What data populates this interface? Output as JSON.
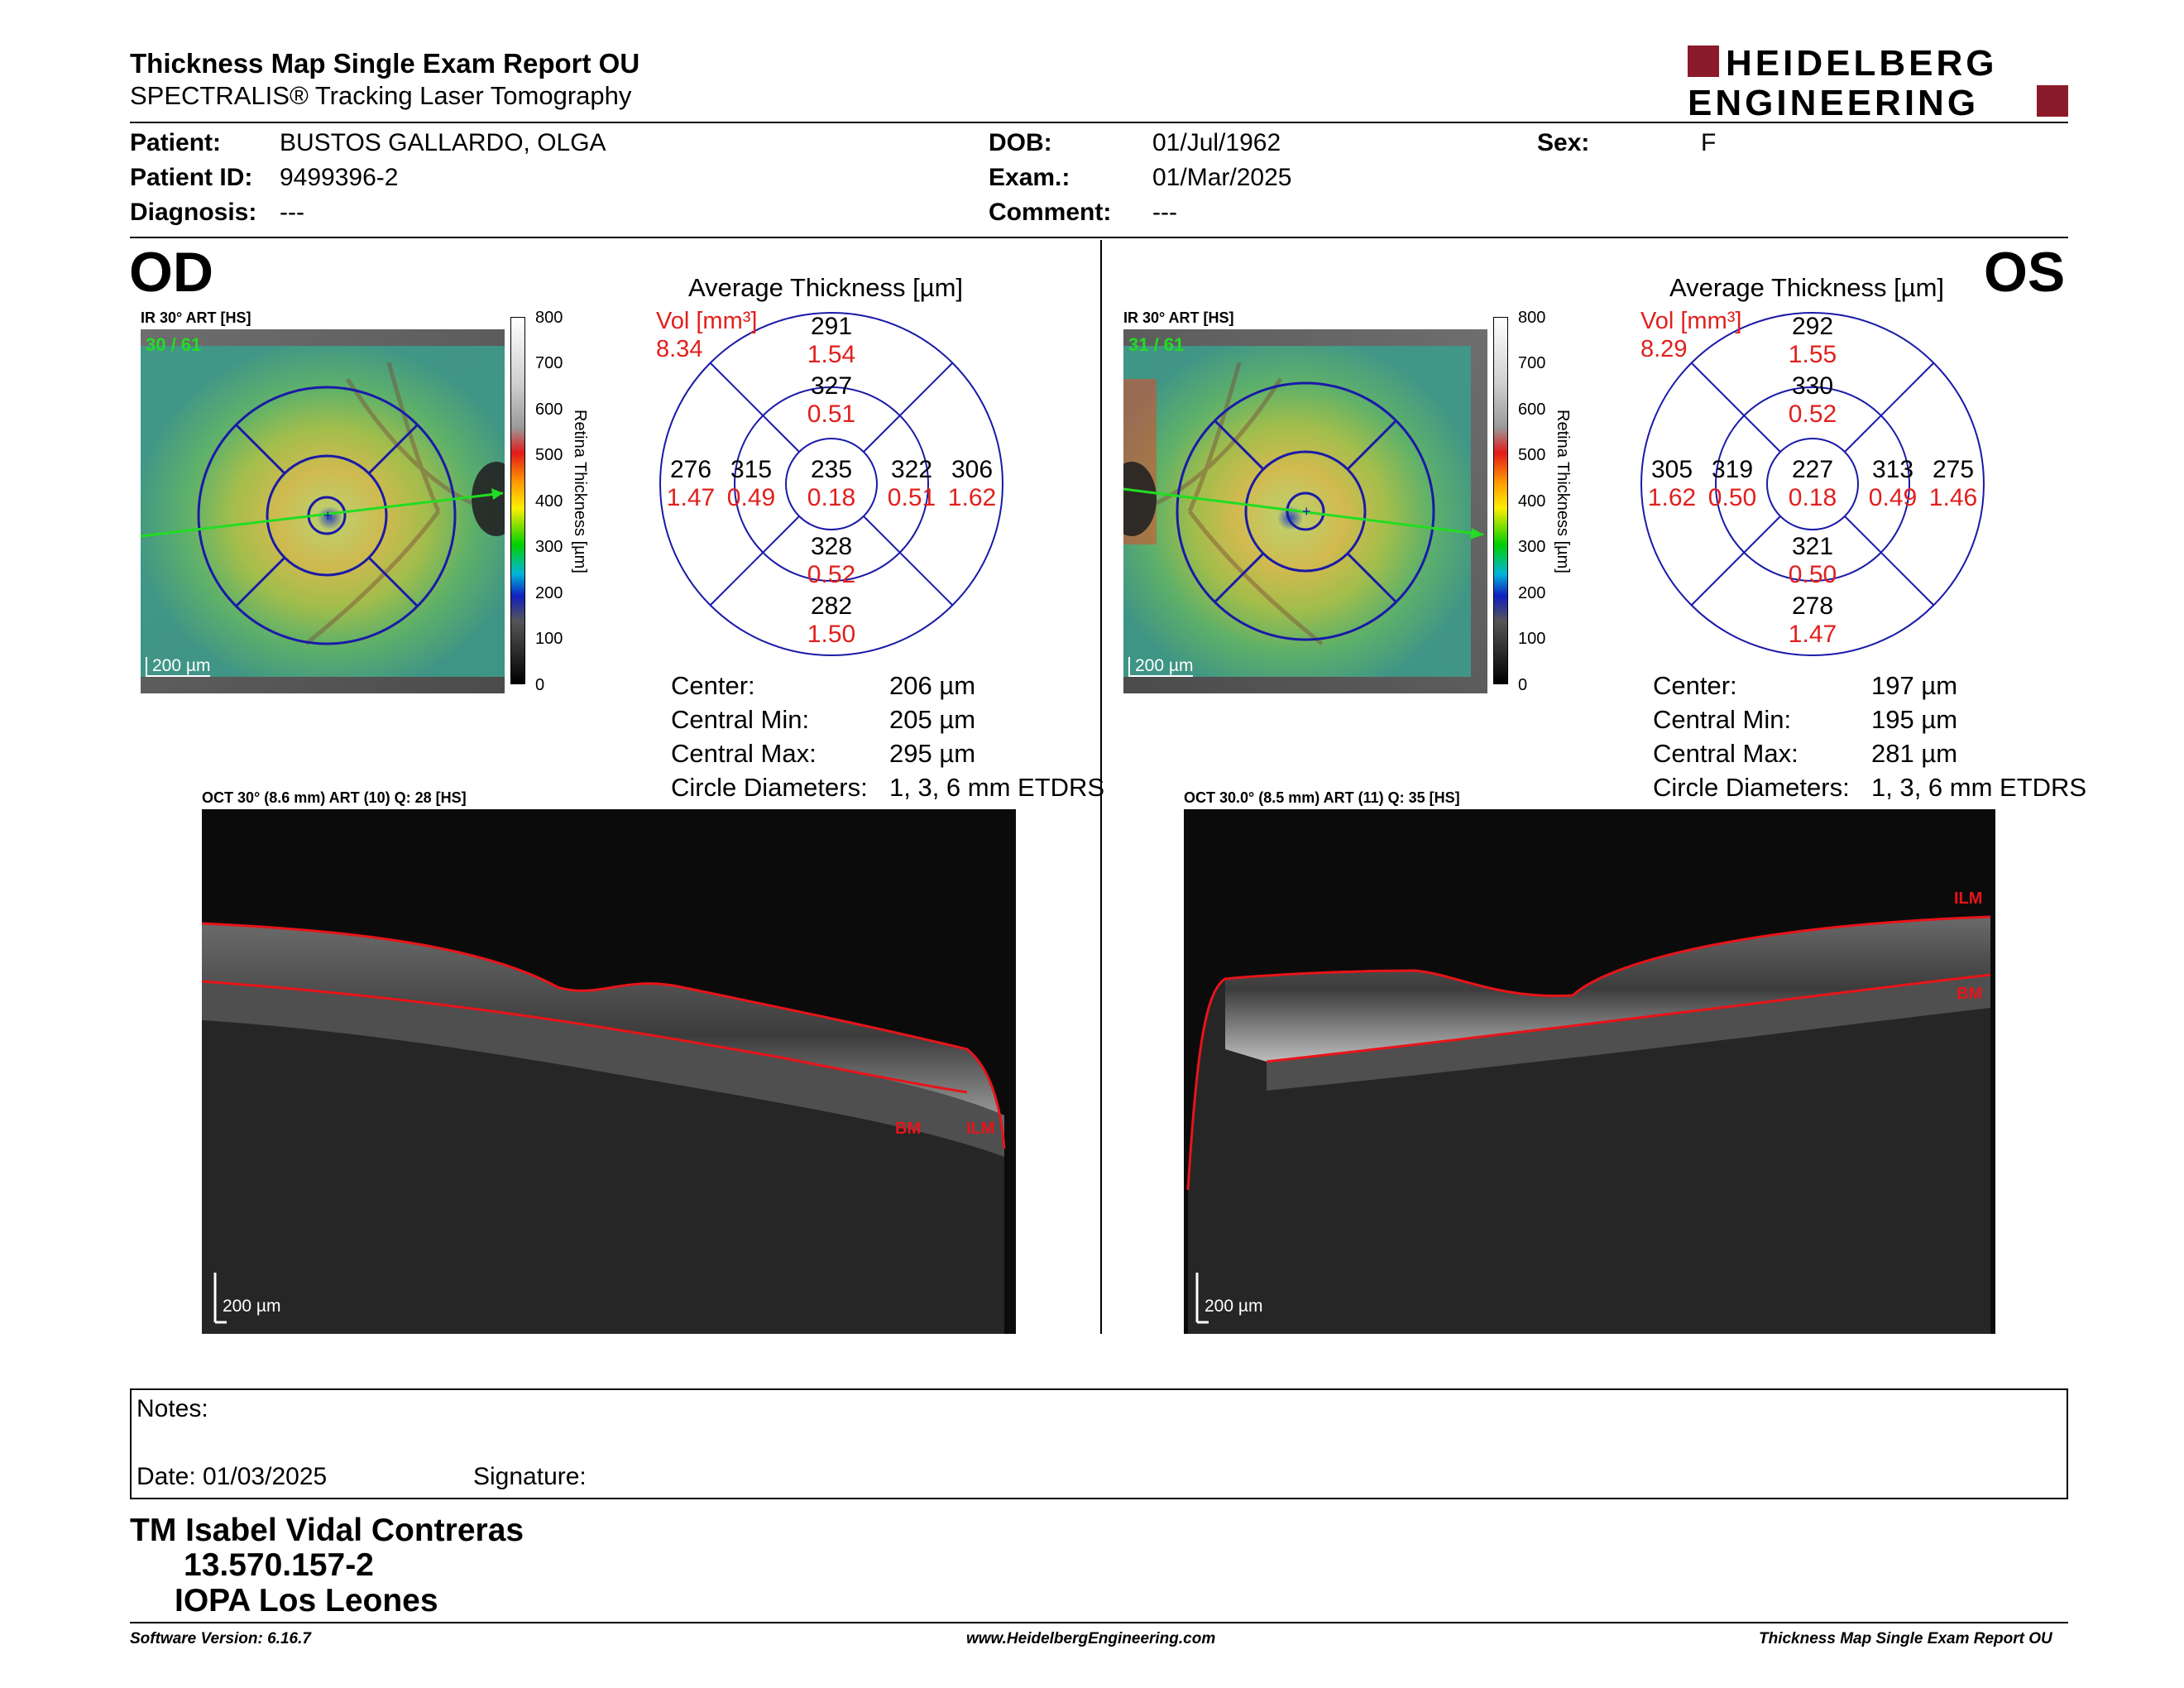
{
  "header": {
    "title": "Thickness Map Single Exam Report OU",
    "subtitle": "SPECTRALIS® Tracking Laser Tomography",
    "logo_line1": "HEIDELBERG",
    "logo_line2": "ENGINEERING",
    "brand_color": "#8b1a2b"
  },
  "patient": {
    "patient_label": "Patient:",
    "patient_value": "BUSTOS GALLARDO, OLGA",
    "id_label": "Patient ID:",
    "id_value": "9499396-2",
    "diag_label": "Diagnosis:",
    "diag_value": "---",
    "dob_label": "DOB:",
    "dob_value": "01/Jul/1962",
    "exam_label": "Exam.:",
    "exam_value": "01/Mar/2025",
    "comment_label": "Comment:",
    "comment_value": "---",
    "sex_label": "Sex:",
    "sex_value": "F"
  },
  "od": {
    "eye": "OD",
    "ir_label": "IR 30° ART [HS]",
    "frame_count": "30 / 61",
    "scale": "200 µm",
    "colorbar_title": "Retina Thickness [µm]",
    "colorbar_ticks": [
      "800",
      "700",
      "600",
      "500",
      "400",
      "300",
      "200",
      "100",
      "0"
    ],
    "avg_title": "Average Thickness [µm]",
    "vol_label": "Vol [mm³]",
    "vol_value": "8.34",
    "etdrs": {
      "center_t": "235",
      "center_v": "0.18",
      "inner_sup_t": "327",
      "inner_sup_v": "0.51",
      "inner_inf_t": "328",
      "inner_inf_v": "0.52",
      "inner_left_t": "315",
      "inner_left_v": "0.49",
      "inner_right_t": "322",
      "inner_right_v": "0.51",
      "outer_sup_t": "291",
      "outer_sup_v": "1.54",
      "outer_inf_t": "282",
      "outer_inf_v": "1.50",
      "outer_left_t": "276",
      "outer_left_v": "1.47",
      "outer_right_t": "306",
      "outer_right_v": "1.62"
    },
    "stats": {
      "center_label": "Center:",
      "center_value": "206 µm",
      "min_label": "Central Min:",
      "min_value": "205 µm",
      "max_label": "Central Max:",
      "max_value": "295 µm",
      "diam_label": "Circle Diameters:",
      "diam_value": "1, 3, 6 mm ETDRS"
    },
    "oct_label": "OCT 30° (8.6 mm) ART (10) Q: 28 [HS]",
    "oct_scale": "200 µm",
    "layer_bm": "BM",
    "layer_ilm": "ILM"
  },
  "os": {
    "eye": "OS",
    "ir_label": "IR 30° ART [HS]",
    "frame_count": "31 / 61",
    "scale": "200 µm",
    "colorbar_title": "Retina Thickness [µm]",
    "colorbar_ticks": [
      "800",
      "700",
      "600",
      "500",
      "400",
      "300",
      "200",
      "100",
      "0"
    ],
    "avg_title": "Average Thickness [µm]",
    "vol_label": "Vol [mm³]",
    "vol_value": "8.29",
    "etdrs": {
      "center_t": "227",
      "center_v": "0.18",
      "inner_sup_t": "330",
      "inner_sup_v": "0.52",
      "inner_inf_t": "321",
      "inner_inf_v": "0.50",
      "inner_left_t": "319",
      "inner_left_v": "0.50",
      "inner_right_t": "313",
      "inner_right_v": "0.49",
      "outer_sup_t": "292",
      "outer_sup_v": "1.55",
      "outer_inf_t": "278",
      "outer_inf_v": "1.47",
      "outer_left_t": "305",
      "outer_left_v": "1.62",
      "outer_right_t": "275",
      "outer_right_v": "1.46"
    },
    "stats": {
      "center_label": "Center:",
      "center_value": "197 µm",
      "min_label": "Central Min:",
      "min_value": "195 µm",
      "max_label": "Central Max:",
      "max_value": "281 µm",
      "diam_label": "Circle Diameters:",
      "diam_value": "1, 3, 6 mm ETDRS"
    },
    "oct_label": "OCT 30.0° (8.5 mm) ART (11) Q: 35 [HS]",
    "oct_scale": "200 µm",
    "layer_bm": "BM",
    "layer_ilm": "ILM"
  },
  "notes": {
    "notes_label": "Notes:",
    "date_label": "Date: 01/03/2025",
    "signature_label": "Signature:"
  },
  "signer": {
    "name": "TM Isabel Vidal Contreras",
    "id": "13.570.157-2",
    "org": "IOPA Los Leones"
  },
  "footer": {
    "software": "Software Version: 6.16.7",
    "website": "www.HeidelbergEngineering.com",
    "report": "Thickness Map Single Exam Report OU"
  },
  "colors": {
    "value_red": "#e0201e",
    "etdrs_blue": "#1a1aa8",
    "scan_green": "#22dd22",
    "layer_red": "#e8141a"
  }
}
